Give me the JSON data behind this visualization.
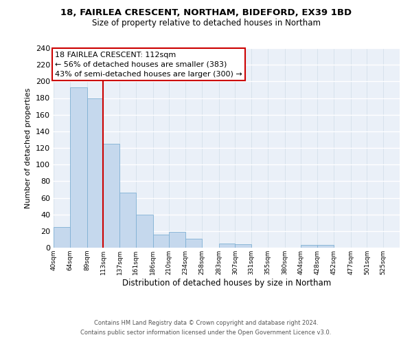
{
  "title1": "18, FAIRLEA CRESCENT, NORTHAM, BIDEFORD, EX39 1BD",
  "title2": "Size of property relative to detached houses in Northam",
  "xlabel": "Distribution of detached houses by size in Northam",
  "ylabel": "Number of detached properties",
  "bar_edges": [
    40,
    64,
    89,
    113,
    137,
    161,
    186,
    210,
    234,
    258,
    283,
    307,
    331,
    355,
    380,
    404,
    428,
    452,
    477,
    501,
    525
  ],
  "bar_heights": [
    25,
    193,
    180,
    125,
    66,
    40,
    16,
    19,
    11,
    0,
    5,
    4,
    0,
    0,
    0,
    3,
    3,
    0,
    0,
    0,
    0
  ],
  "tick_labels": [
    "40sqm",
    "64sqm",
    "89sqm",
    "113sqm",
    "137sqm",
    "161sqm",
    "186sqm",
    "210sqm",
    "234sqm",
    "258sqm",
    "283sqm",
    "307sqm",
    "331sqm",
    "355sqm",
    "380sqm",
    "404sqm",
    "428sqm",
    "452sqm",
    "477sqm",
    "501sqm",
    "525sqm"
  ],
  "bar_color": "#c5d8ed",
  "bar_edgecolor": "#7fb0d4",
  "property_line_x": 113,
  "property_label": "18 FAIRLEA CRESCENT: 112sqm",
  "annotation_line1": "← 56% of detached houses are smaller (383)",
  "annotation_line2": "43% of semi-detached houses are larger (300) →",
  "annotation_box_color": "#ffffff",
  "annotation_box_edgecolor": "#cc0000",
  "vline_color": "#cc0000",
  "ylim": [
    0,
    240
  ],
  "yticks": [
    0,
    20,
    40,
    60,
    80,
    100,
    120,
    140,
    160,
    180,
    200,
    220,
    240
  ],
  "bg_color": "#eaf0f8",
  "fig_bg_color": "#ffffff",
  "footer1": "Contains HM Land Registry data © Crown copyright and database right 2024.",
  "footer2": "Contains public sector information licensed under the Open Government Licence v3.0.",
  "grid_color": "#d0dce8"
}
